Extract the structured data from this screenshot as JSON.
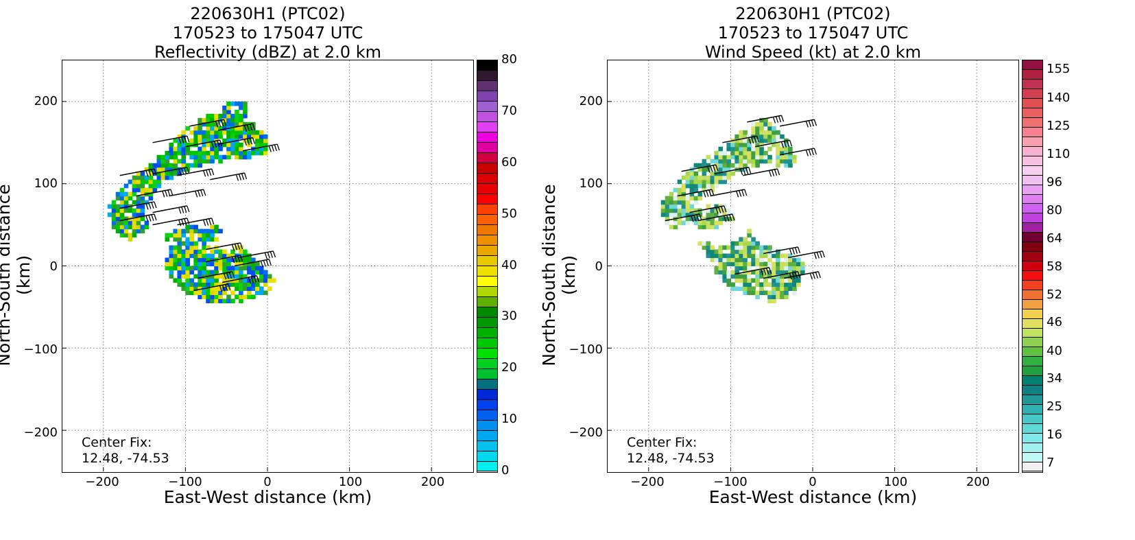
{
  "chart_data": [
    {
      "type": "heatmap",
      "title_lines": [
        "220630H1 (PTC02)",
        "170523 to 175047 UTC",
        "Reflectivity (dBZ) at 2.0 km"
      ],
      "xlabel": "East-West distance (km)",
      "ylabel": "North-South distance (km)",
      "xlim": [
        -250,
        250
      ],
      "ylim": [
        -250,
        250
      ],
      "xticks": [
        -200,
        -100,
        0,
        100,
        200
      ],
      "yticks": [
        200,
        100,
        0,
        -100,
        -200
      ],
      "xtick_labels": [
        "−200",
        "−100",
        "0",
        "100",
        "200"
      ],
      "ytick_labels": [
        "200",
        "100",
        "0",
        "−100",
        "−200"
      ],
      "grid": true,
      "annotation": [
        "Center Fix:",
        "12.48, -74.53"
      ],
      "colorbar": {
        "min": 0,
        "max": 80,
        "tick_labels": [
          "80",
          "70",
          "60",
          "50",
          "40",
          "30",
          "20",
          "10",
          "0"
        ],
        "tick_values": [
          80,
          70,
          60,
          50,
          40,
          30,
          20,
          10,
          0
        ],
        "colors": [
          "#00f0f0",
          "#00d8ee",
          "#00c0ee",
          "#00a8f0",
          "#0090f0",
          "#0060f0",
          "#0040f0",
          "#0028d8",
          "#007080",
          "#00c030",
          "#00d020",
          "#00e000",
          "#00c800",
          "#00b000",
          "#009800",
          "#008800",
          "#60b000",
          "#b0d800",
          "#ffff00",
          "#f0e000",
          "#e8c800",
          "#e8a800",
          "#f09000",
          "#f07800",
          "#ff6000",
          "#ff4000",
          "#ff0000",
          "#e80000",
          "#d80000",
          "#c80000",
          "#d00040",
          "#e000a0",
          "#f000e0",
          "#e040f0",
          "#c050e0",
          "#a060d0",
          "#8040b0",
          "#603070",
          "#301830",
          "#000000"
        ]
      },
      "field_colors": [
        "#00b000",
        "#00c800",
        "#10d010",
        "#30a030",
        "#0050f0",
        "#0070e8",
        "#e8e000",
        "#d8d800",
        "#00a8f0"
      ],
      "barb_color": "#000000"
    },
    {
      "type": "heatmap",
      "title_lines": [
        "220630H1 (PTC02)",
        "170523 to 175047 UTC",
        "Wind Speed (kt) at 2.0 km"
      ],
      "xlabel": "East-West distance (km)",
      "ylabel": "North-South distance (km)",
      "xlim": [
        -250,
        250
      ],
      "ylim": [
        -250,
        250
      ],
      "xticks": [
        -200,
        -100,
        0,
        100,
        200
      ],
      "yticks": [
        200,
        100,
        0,
        -100,
        -200
      ],
      "xtick_labels": [
        "−200",
        "−100",
        "0",
        "100",
        "200"
      ],
      "ytick_labels": [
        "200",
        "100",
        "0",
        "−100",
        "−200"
      ],
      "grid": true,
      "annotation": [
        "Center Fix:",
        "12.48, -74.53"
      ],
      "colorbar": {
        "tick_labels": [
          "155",
          "140",
          "125",
          "110",
          "96",
          "80",
          "64",
          "58",
          "52",
          "46",
          "40",
          "34",
          "25",
          "16",
          "7"
        ],
        "tick_positions_bin": [
          28,
          25,
          22,
          19,
          16,
          13,
          10,
          8,
          6,
          4,
          2,
          0,
          -3,
          -6,
          -9
        ],
        "colors": [
          "#f0f0f0",
          "#c0f8f8",
          "#a0f0f0",
          "#80e8e8",
          "#60d8d8",
          "#48c8c8",
          "#30b0b0",
          "#209898",
          "#108080",
          "#008070",
          "#20a040",
          "#30b040",
          "#60c040",
          "#90d050",
          "#c0e060",
          "#e0e060",
          "#f0d050",
          "#f0a040",
          "#f07030",
          "#f04020",
          "#f01010",
          "#d00010",
          "#a00010",
          "#800010",
          "#700030",
          "#a020a0",
          "#c040e0",
          "#d060f0",
          "#e080f0",
          "#e8a0f0",
          "#f0c0f0",
          "#f8d0f0",
          "#f8c0e0",
          "#f8b0d0",
          "#f8a0b0",
          "#f88090",
          "#f07070",
          "#e86060",
          "#e05050",
          "#d04050",
          "#c03050",
          "#b02040",
          "#901040"
        ]
      },
      "field_colors": [
        "#c8e060",
        "#a8d850",
        "#d8e060",
        "#60b040",
        "#40a040",
        "#108878",
        "#209090",
        "#70d8d8",
        "#e0f0f0"
      ],
      "barb_color": "#000000"
    }
  ]
}
